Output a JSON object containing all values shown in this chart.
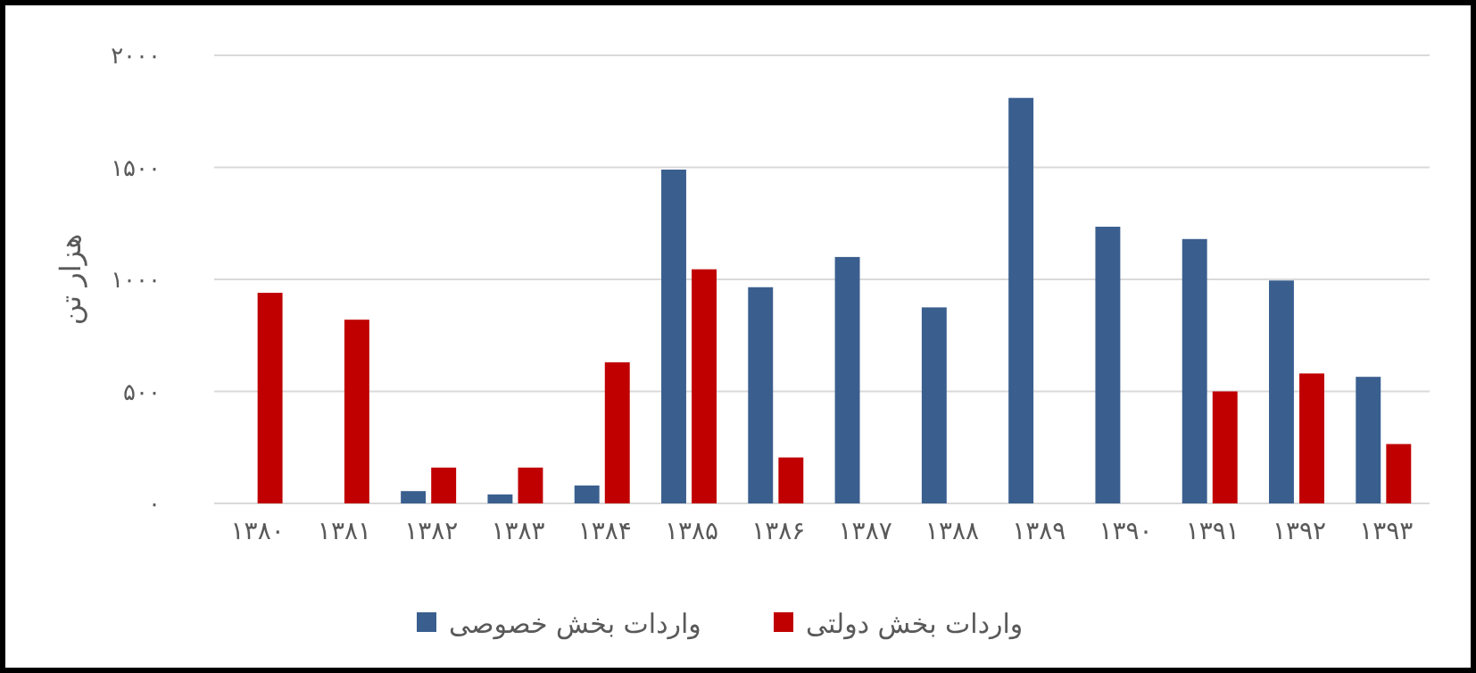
{
  "chart_data": {
    "type": "bar",
    "ylabel": "هزار تن",
    "categories": [
      "۱۳۸۰",
      "۱۳۸۱",
      "۱۳۸۲",
      "۱۳۸۳",
      "۱۳۸۴",
      "۱۳۸۵",
      "۱۳۸۶",
      "۱۳۸۷",
      "۱۳۸۸",
      "۱۳۸۹",
      "۱۳۹۰",
      "۱۳۹۱",
      "۱۳۹۲",
      "۱۳۹۳"
    ],
    "series": [
      {
        "name": "واردات بخش خصوصی",
        "color": "#3a5f8f",
        "values": [
          null,
          null,
          55,
          40,
          80,
          1490,
          965,
          1100,
          875,
          1810,
          1235,
          1180,
          995,
          565
        ]
      },
      {
        "name": "واردات بخش دولتی",
        "color": "#c00000",
        "values": [
          940,
          820,
          160,
          160,
          630,
          1045,
          205,
          null,
          null,
          null,
          null,
          500,
          580,
          265
        ]
      }
    ],
    "ylim": [
      0,
      2000
    ],
    "yticks": [
      {
        "value": 0,
        "label": "۰"
      },
      {
        "value": 500,
        "label": "۵۰۰"
      },
      {
        "value": 1000,
        "label": "۱۰۰۰"
      },
      {
        "value": 1500,
        "label": "۱۵۰۰"
      },
      {
        "value": 2000,
        "label": "۲۰۰۰"
      }
    ],
    "grid": "y",
    "legend": "bottom"
  }
}
